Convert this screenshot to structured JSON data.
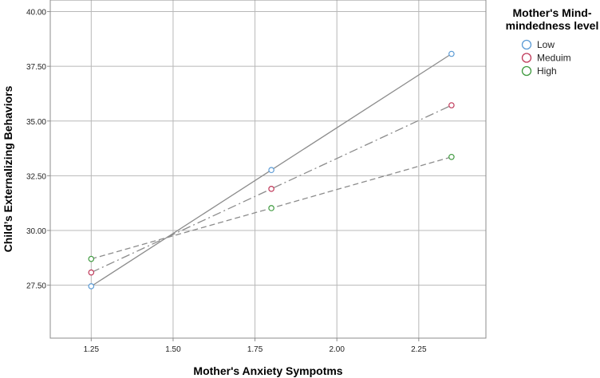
{
  "chart_data": {
    "type": "line",
    "title": "",
    "xlabel": "Mother's Anxiety Sympotms",
    "ylabel": "Child’s Externalizing Behaviors",
    "xlim": [
      1.125,
      2.455
    ],
    "ylim": [
      25.08,
      40.53
    ],
    "x_ticks": [
      1.25,
      1.5,
      1.75,
      2.0,
      2.25
    ],
    "x_tick_labels": [
      "1.25",
      "1.50",
      "1.75",
      "2.00",
      "2.25"
    ],
    "y_ticks": [
      27.5,
      30.0,
      32.5,
      35.0,
      37.5,
      40.0
    ],
    "y_tick_labels": [
      "27.50",
      "30.00",
      "32.50",
      "35.00",
      "37.50",
      "40.00"
    ],
    "grid": true,
    "legend": {
      "title_lines": [
        "Mother's Mind-",
        "mindedness level"
      ],
      "placement": "right"
    },
    "x": [
      1.25,
      1.8,
      2.35
    ],
    "series": [
      {
        "name": "Low",
        "values": [
          27.45,
          32.76,
          38.07
        ],
        "marker_color": "#5b9bd5",
        "dash": "solid"
      },
      {
        "name": "Meduim",
        "values": [
          28.08,
          31.9,
          35.72
        ],
        "marker_color": "#c0395a",
        "dash": "dashdot"
      },
      {
        "name": "High",
        "values": [
          28.7,
          31.02,
          33.36
        ],
        "marker_color": "#3f9a3f",
        "dash": "dashed"
      }
    ],
    "line_color": "#8c8c8c"
  }
}
